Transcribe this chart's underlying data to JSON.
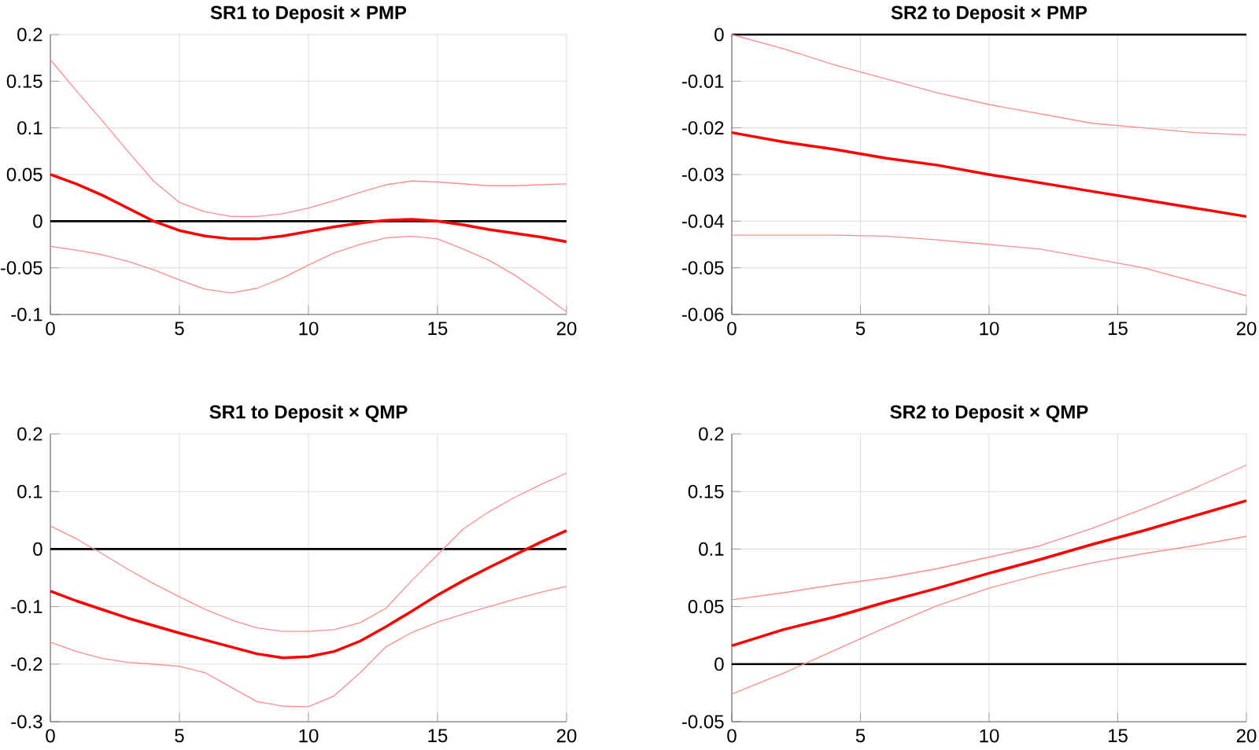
{
  "chart_data": [
    {
      "type": "line",
      "title": "SR1 to Deposit × PMP",
      "x": [
        0,
        1,
        2,
        3,
        4,
        5,
        6,
        7,
        8,
        9,
        10,
        11,
        12,
        13,
        14,
        15,
        16,
        17,
        18,
        19,
        20
      ],
      "xlim": [
        0,
        20
      ],
      "xticks": [
        0,
        5,
        10,
        15,
        20
      ],
      "ylim": [
        -0.1,
        0.2
      ],
      "yticks": [
        -0.1,
        -0.05,
        0,
        0.05,
        0.1,
        0.15,
        0.2
      ],
      "grid": true,
      "ref_lines": [
        {
          "axis": "y",
          "value": 0,
          "color": "#000000"
        }
      ],
      "series": [
        {
          "color": "#ff0000",
          "values": [
            0.05,
            0.04,
            0.028,
            0.014,
            0.0,
            -0.01,
            -0.016,
            -0.019,
            -0.019,
            -0.016,
            -0.011,
            -0.006,
            -0.002,
            0.001,
            0.002,
            0.0,
            -0.004,
            -0.009,
            -0.013,
            -0.017,
            -0.022
          ]
        },
        {
          "color": "#ff8c8c",
          "values": [
            0.173,
            0.14,
            0.108,
            0.075,
            0.043,
            0.02,
            0.01,
            0.005,
            0.005,
            0.008,
            0.014,
            0.022,
            0.031,
            0.039,
            0.043,
            0.042,
            0.04,
            0.038,
            0.038,
            0.039,
            0.04
          ]
        },
        {
          "color": "#ff8c8c",
          "values": [
            -0.027,
            -0.031,
            -0.036,
            -0.043,
            -0.052,
            -0.063,
            -0.073,
            -0.077,
            -0.072,
            -0.061,
            -0.047,
            -0.034,
            -0.025,
            -0.018,
            -0.016,
            -0.019,
            -0.03,
            -0.042,
            -0.058,
            -0.077,
            -0.097
          ]
        }
      ]
    },
    {
      "type": "line",
      "title": "SR2 to Deposit × PMP",
      "x": [
        0,
        2,
        4,
        6,
        8,
        10,
        12,
        14,
        16,
        18,
        20
      ],
      "xlim": [
        0,
        20
      ],
      "xticks": [
        0,
        5,
        10,
        15,
        20
      ],
      "ylim": [
        -0.06,
        0
      ],
      "yticks": [
        -0.06,
        -0.05,
        -0.04,
        -0.03,
        -0.02,
        -0.01,
        0
      ],
      "grid": true,
      "ref_lines": [
        {
          "axis": "y",
          "value": 0,
          "color": "#000000"
        }
      ],
      "series": [
        {
          "color": "#ff0000",
          "values": [
            -0.021,
            -0.023,
            -0.0246,
            -0.0265,
            -0.028,
            -0.03,
            -0.0318,
            -0.0336,
            -0.0354,
            -0.0372,
            -0.039
          ]
        },
        {
          "color": "#ff8c8c",
          "values": [
            0.0,
            -0.003,
            -0.0065,
            -0.0095,
            -0.0125,
            -0.015,
            -0.017,
            -0.019,
            -0.02,
            -0.021,
            -0.0215
          ]
        },
        {
          "color": "#ff8c8c",
          "values": [
            -0.043,
            -0.043,
            -0.043,
            -0.0432,
            -0.044,
            -0.045,
            -0.046,
            -0.048,
            -0.05,
            -0.053,
            -0.056
          ]
        }
      ]
    },
    {
      "type": "line",
      "title": "SR1 to Deposit × QMP",
      "x": [
        0,
        1,
        2,
        3,
        4,
        5,
        6,
        7,
        8,
        9,
        10,
        11,
        12,
        13,
        14,
        15,
        16,
        17,
        18,
        19,
        20
      ],
      "xlim": [
        0,
        20
      ],
      "xticks": [
        0,
        5,
        10,
        15,
        20
      ],
      "ylim": [
        -0.3,
        0.2
      ],
      "yticks": [
        -0.3,
        -0.2,
        -0.1,
        0,
        0.1,
        0.2
      ],
      "grid": true,
      "ref_lines": [
        {
          "axis": "y",
          "value": 0,
          "color": "#000000"
        }
      ],
      "series": [
        {
          "color": "#ff0000",
          "values": [
            -0.073,
            -0.09,
            -0.105,
            -0.12,
            -0.133,
            -0.146,
            -0.158,
            -0.17,
            -0.182,
            -0.189,
            -0.187,
            -0.178,
            -0.16,
            -0.135,
            -0.108,
            -0.08,
            -0.055,
            -0.032,
            -0.01,
            0.012,
            0.032
          ]
        },
        {
          "color": "#ff8c8c",
          "values": [
            0.04,
            0.018,
            -0.008,
            -0.035,
            -0.06,
            -0.083,
            -0.105,
            -0.123,
            -0.137,
            -0.143,
            -0.143,
            -0.14,
            -0.128,
            -0.103,
            -0.055,
            -0.01,
            0.035,
            0.065,
            0.09,
            0.112,
            0.132
          ]
        },
        {
          "color": "#ff8c8c",
          "values": [
            -0.162,
            -0.178,
            -0.19,
            -0.197,
            -0.2,
            -0.204,
            -0.215,
            -0.24,
            -0.265,
            -0.273,
            -0.274,
            -0.255,
            -0.215,
            -0.17,
            -0.145,
            -0.127,
            -0.113,
            -0.1,
            -0.087,
            -0.075,
            -0.065
          ]
        }
      ]
    },
    {
      "type": "line",
      "title": "SR2 to Deposit × QMP",
      "x": [
        0,
        2,
        4,
        6,
        8,
        10,
        12,
        14,
        16,
        18,
        20
      ],
      "xlim": [
        0,
        20
      ],
      "xticks": [
        0,
        5,
        10,
        15,
        20
      ],
      "ylim": [
        -0.05,
        0.2
      ],
      "yticks": [
        -0.05,
        0,
        0.05,
        0.1,
        0.15,
        0.2
      ],
      "grid": true,
      "ref_lines": [
        {
          "axis": "y",
          "value": 0,
          "color": "#000000"
        }
      ],
      "series": [
        {
          "color": "#ff0000",
          "values": [
            0.016,
            0.03,
            0.041,
            0.054,
            0.066,
            0.079,
            0.091,
            0.104,
            0.116,
            0.129,
            0.142
          ]
        },
        {
          "color": "#ff8c8c",
          "values": [
            0.056,
            0.062,
            0.069,
            0.075,
            0.083,
            0.093,
            0.103,
            0.118,
            0.135,
            0.153,
            0.173
          ]
        },
        {
          "color": "#ff8c8c",
          "values": [
            -0.026,
            -0.008,
            0.012,
            0.032,
            0.051,
            0.066,
            0.078,
            0.088,
            0.096,
            0.103,
            0.111
          ]
        }
      ]
    }
  ]
}
